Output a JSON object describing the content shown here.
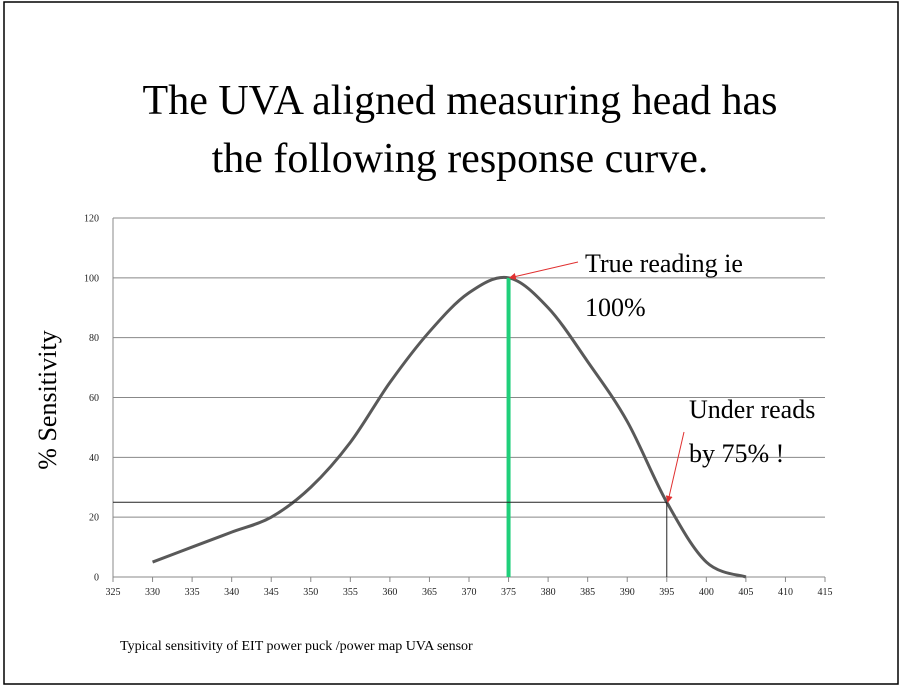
{
  "chart_data": {
    "type": "line",
    "title": [
      "The UVA aligned measuring head has",
      "the following response curve."
    ],
    "ylabel": "%  Sensitivity",
    "caption": "Typical sensitivity of EIT power puck /power map UVA sensor",
    "x": [
      330,
      335,
      340,
      345,
      350,
      355,
      360,
      365,
      370,
      375,
      380,
      385,
      390,
      395,
      400,
      405
    ],
    "series": [
      {
        "color": "#595959",
        "values": [
          5,
          10,
          15,
          20,
          30,
          45,
          65,
          82,
          95,
          100,
          90,
          72,
          52,
          25,
          5,
          0
        ]
      }
    ],
    "xlim": [
      325,
      415
    ],
    "xticks": [
      325,
      330,
      335,
      340,
      345,
      350,
      355,
      360,
      365,
      370,
      375,
      380,
      385,
      390,
      395,
      400,
      405,
      410,
      415
    ],
    "ylim": [
      0,
      120
    ],
    "yticks": [
      0,
      20,
      40,
      60,
      80,
      100,
      120
    ],
    "grid": true,
    "highlight_color": "#1fcf7a",
    "annotation_color": "#e03030",
    "annotations": [
      {
        "lines": [
          "True reading ie",
          "100%"
        ]
      },
      {
        "lines": [
          "Under reads",
          "by 75% !"
        ]
      }
    ]
  }
}
